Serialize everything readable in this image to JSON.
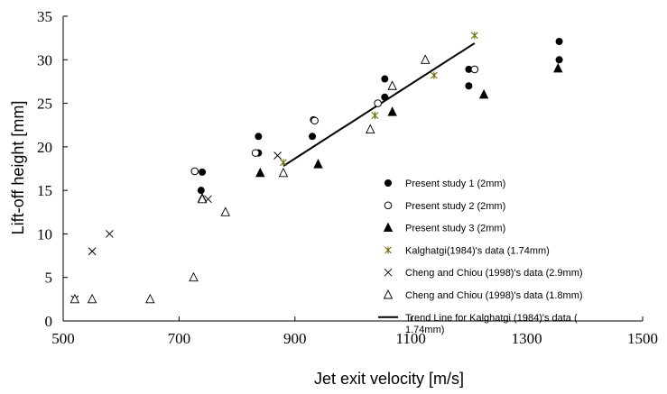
{
  "chart_data": {
    "type": "scatter",
    "xlabel": "Jet exit velocity [m/s]",
    "ylabel": "Lift-off height [mm]",
    "xlim": [
      500,
      1500
    ],
    "ylim": [
      0,
      35
    ],
    "x_ticks": [
      500,
      700,
      900,
      1100,
      1300,
      1500
    ],
    "y_ticks": [
      0,
      5,
      10,
      15,
      20,
      25,
      30,
      35
    ],
    "grid": false,
    "legend_position": "right",
    "series": [
      {
        "name": "Present study 1 (2mm)",
        "marker": "filled-circle",
        "color": "#000000",
        "points": [
          [
            740,
            17.1
          ],
          [
            738,
            15.0
          ],
          [
            837,
            21.2
          ],
          [
            837,
            19.3
          ],
          [
            930,
            21.2
          ],
          [
            932,
            23.1
          ],
          [
            1055,
            27.8
          ],
          [
            1055,
            25.7
          ],
          [
            1200,
            28.9
          ],
          [
            1200,
            27.0
          ],
          [
            1356,
            32.1
          ],
          [
            1356,
            30.0
          ]
        ]
      },
      {
        "name": "Present study 2 (2mm)",
        "marker": "open-circle",
        "color": "#000000",
        "points": [
          [
            727,
            17.2
          ],
          [
            832,
            19.3
          ],
          [
            934,
            23.0
          ],
          [
            1043,
            25.0
          ],
          [
            1210,
            28.9
          ]
        ]
      },
      {
        "name": "Present study 3 (2mm)",
        "marker": "filled-triangle",
        "color": "#000000",
        "points": [
          [
            740,
            14.1
          ],
          [
            840,
            17.0
          ],
          [
            940,
            18.0
          ],
          [
            1068,
            24.0
          ],
          [
            1226,
            26.0
          ],
          [
            1354,
            29.0
          ]
        ]
      },
      {
        "name": "Kalghatgi(1984)'s data (1.74mm)",
        "marker": "asterisk",
        "color": "#6b6b00",
        "points": [
          [
            880,
            18.2
          ],
          [
            1038,
            23.6
          ],
          [
            1140,
            28.2
          ],
          [
            1210,
            32.8
          ]
        ]
      },
      {
        "name": "Cheng and Chiou (1998)'s data (2.9mm)",
        "marker": "x",
        "color": "#000000",
        "points": [
          [
            520,
            2.5
          ],
          [
            550,
            8.0
          ],
          [
            580,
            10.0
          ],
          [
            750,
            14.0
          ],
          [
            870,
            19.0
          ]
        ]
      },
      {
        "name": "Cheng and Chiou (1998)'s data (1.8mm)",
        "marker": "open-triangle",
        "color": "#000000",
        "points": [
          [
            520,
            2.5
          ],
          [
            550,
            2.5
          ],
          [
            650,
            2.5
          ],
          [
            725,
            5.0
          ],
          [
            740,
            14.0
          ],
          [
            780,
            12.5
          ],
          [
            880,
            17.0
          ],
          [
            1030,
            22.0
          ],
          [
            1068,
            27.0
          ],
          [
            1125,
            30.0
          ]
        ]
      }
    ],
    "trend_line": {
      "name": "Trend Line  for Kalghatgi (1984)'s data ( 1.74mm)",
      "label_lines": [
        "Trend Line  for Kalghatgi (1984)'s data (",
        "1.74mm)"
      ],
      "color": "#000000",
      "points": [
        [
          880,
          17.8
        ],
        [
          1210,
          31.9
        ]
      ]
    }
  }
}
